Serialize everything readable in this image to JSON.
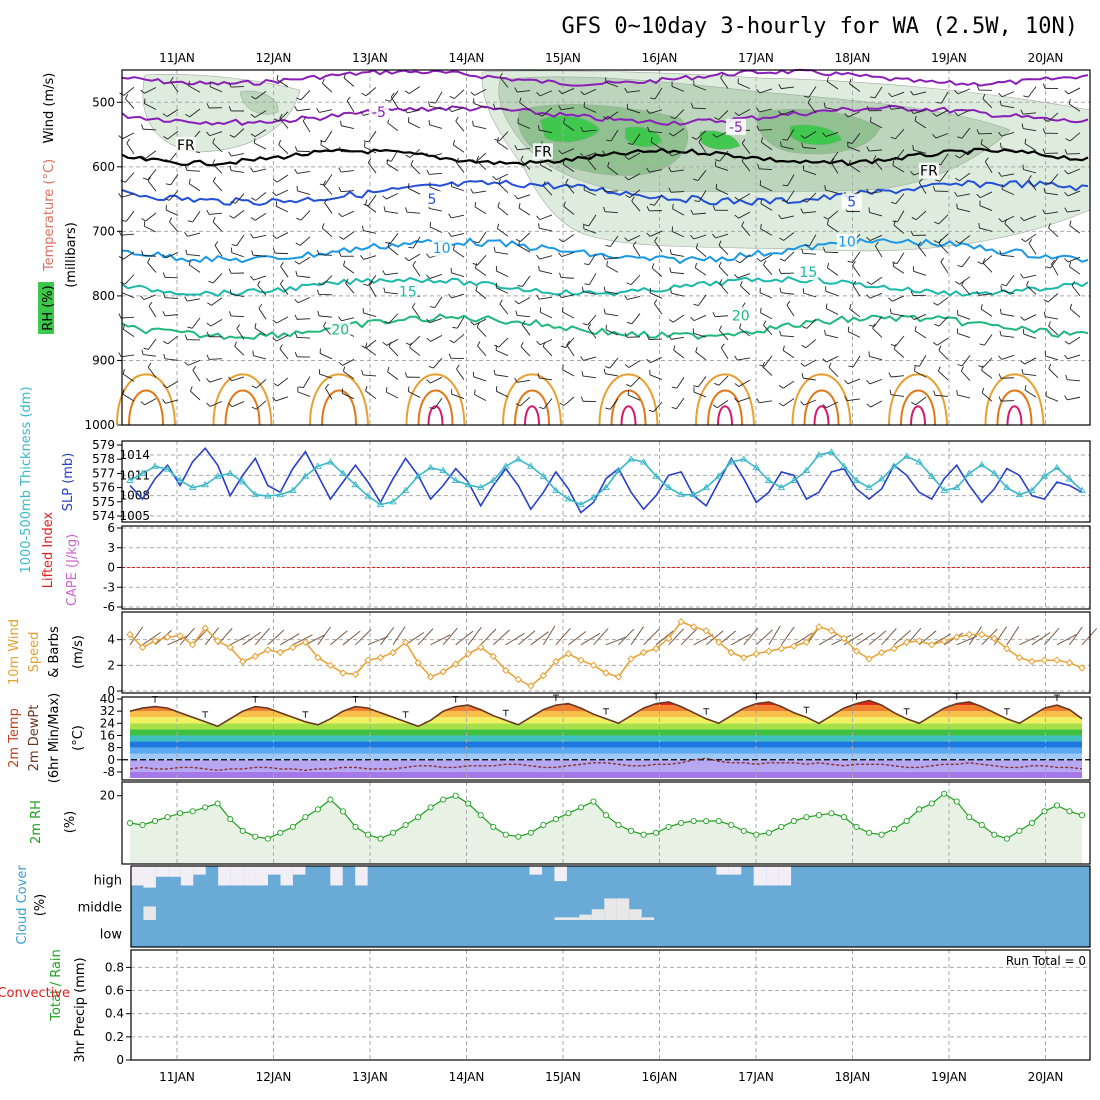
{
  "title": "GFS 0~10day 3-hourly for WA (2.5W, 10N)",
  "run_total_label": "Run Total = 0",
  "colors": {
    "frame": "#000000",
    "grid": "#aaaaaa",
    "temp_purple": "#8a1fb8",
    "temp_blue": "#2450d8",
    "temp_lightblue": "#1a98e6",
    "temp_teal": "#1ab8a8",
    "temp_green": "#1fb87a",
    "temp_orange": "#e8a030",
    "temp_darkorange": "#e07818",
    "temp_magenta": "#d81870",
    "rh_light": "#dcebdc",
    "rh_mid": "#bcd4bc",
    "rh_dark": "#8fbf8f",
    "rh_green": "#3cc84a",
    "slp": "#2840c8",
    "thickness": "#3ab8c8",
    "lifted_index": "#e02020",
    "cape": "#c868c8",
    "wind": "#e8a030",
    "rh2m": "#20a020",
    "rh2m_fill": "#e8f2e4",
    "cloud_blue": "#6aaad6",
    "cloud_white": "#f2eef6",
    "cloud_grey": "#e8e8e8",
    "precip_total": "#20a020",
    "precip_conv": "#e02020"
  },
  "chart_data": [
    {
      "type": "heatmap",
      "panel": "upper-air",
      "x_ticks": [
        "11JAN",
        "12JAN",
        "13JAN",
        "14JAN",
        "15JAN",
        "16JAN",
        "17JAN",
        "18JAN",
        "19JAN",
        "20JAN"
      ],
      "ylabel_wind": "Wind (m/s)",
      "ylabel_temp": "Temperature (°C)",
      "ylabel_rh": "RH (%)",
      "ylabel_units": "(millibars)",
      "y_ticks": [
        500,
        600,
        700,
        800,
        900,
        1000
      ],
      "ylim": [
        450,
        1000
      ],
      "isotherm_labels": [
        {
          "text": "-5",
          "x": 2.1,
          "p": 515,
          "color": "temp_purple"
        },
        {
          "text": "-5",
          "x": 5.8,
          "p": 538,
          "color": "temp_purple"
        },
        {
          "text": "FR",
          "x": 0.1,
          "p": 566,
          "color": "frame"
        },
        {
          "text": "FR",
          "x": 3.8,
          "p": 576,
          "color": "frame"
        },
        {
          "text": "FR",
          "x": 7.8,
          "p": 606,
          "color": "frame"
        },
        {
          "text": "5",
          "x": 2.65,
          "p": 650,
          "color": "temp_blue"
        },
        {
          "text": "5",
          "x": 7.0,
          "p": 654,
          "color": "temp_blue"
        },
        {
          "text": "10",
          "x": 2.75,
          "p": 726,
          "color": "temp_lightblue"
        },
        {
          "text": "10",
          "x": 6.95,
          "p": 716,
          "color": "temp_lightblue"
        },
        {
          "text": "15",
          "x": 6.55,
          "p": 763,
          "color": "temp_teal"
        },
        {
          "text": "15",
          "x": 2.4,
          "p": 793,
          "color": "temp_teal"
        },
        {
          "text": "20",
          "x": 1.7,
          "p": 852,
          "color": "temp_green"
        },
        {
          "text": "20",
          "x": 5.85,
          "p": 830,
          "color": "temp_green"
        }
      ]
    },
    {
      "type": "line",
      "panel": "slp-thickness",
      "ylabel_left": "1000-500mb Thickness (dm)",
      "ylabel_right": "SLP (mb)",
      "thickness_ticks": [
        574,
        575,
        576,
        577,
        578,
        579
      ],
      "slp_ticks": [
        1005,
        1008,
        1011,
        1014
      ],
      "series": [
        {
          "name": "SLP",
          "axis": "slp",
          "color": "slp",
          "values": [
            1009.5,
            1007.5,
            1010.5,
            1012.5,
            1009.5,
            1013.0,
            1015.0,
            1012.5,
            1008.0,
            1011.0,
            1013.5,
            1009.5,
            1008.5,
            1012.0,
            1014.5,
            1011.0,
            1007.5,
            1010.0,
            1012.5,
            1010.0,
            1007.0,
            1010.5,
            1013.5,
            1011.0,
            1007.5,
            1009.5,
            1012.0,
            1010.0,
            1006.5,
            1009.5,
            1012.0,
            1009.5,
            1006.0,
            1008.5,
            1011.5,
            1009.0,
            1005.5,
            1007.0,
            1010.5,
            1012.0,
            1008.5,
            1006.0,
            1008.0,
            1011.0,
            1011.5,
            1008.0,
            1006.5,
            1010.0,
            1013.5,
            1010.5,
            1007.0,
            1008.5,
            1011.5,
            1011.0,
            1007.5,
            1008.5,
            1011.5,
            1012.0,
            1009.0,
            1007.5,
            1009.0,
            1012.5,
            1011.0,
            1008.5,
            1007.5,
            1010.5,
            1012.5,
            1009.5,
            1007.0,
            1009.0,
            1012.0,
            1011.0,
            1008.0,
            1007.5,
            1010.0,
            1009.5,
            1008.5
          ]
        },
        {
          "name": "Thickness",
          "axis": "thickness",
          "color": "thickness",
          "values": [
            576.5,
            577.0,
            577.5,
            577.3,
            576.5,
            576.0,
            576.2,
            576.8,
            577.0,
            576.4,
            575.5,
            575.4,
            575.5,
            575.8,
            576.8,
            577.5,
            577.8,
            577.0,
            576.2,
            575.4,
            574.8,
            575.0,
            575.8,
            576.8,
            577.4,
            577.2,
            576.5,
            576.2,
            576.0,
            576.5,
            577.5,
            578.0,
            577.5,
            576.8,
            575.8,
            575.2,
            574.8,
            575.3,
            576.0,
            577.2,
            578.0,
            577.8,
            576.8,
            576.0,
            575.5,
            575.5,
            576.0,
            576.8,
            577.8,
            578.0,
            577.4,
            576.5,
            576.0,
            576.5,
            577.2,
            578.3,
            578.5,
            577.5,
            576.5,
            576.0,
            576.6,
            577.5,
            578.2,
            577.8,
            576.8,
            575.8,
            576.0,
            577.0,
            577.6,
            577.0,
            576.0,
            575.5,
            575.8,
            576.8,
            577.4,
            576.6,
            575.8
          ]
        }
      ]
    },
    {
      "type": "line",
      "panel": "lifted-cape",
      "ylabel_left": "Lifted Index",
      "ylabel_right": "CAPE (J/kg)",
      "y_ticks": [
        "6",
        "3",
        "0",
        "-3",
        "-6"
      ],
      "ylim": [
        6,
        -6
      ],
      "series": [
        {
          "name": "Lifted Index",
          "color": "lifted_index",
          "values": [
            0
          ]
        }
      ]
    },
    {
      "type": "line",
      "panel": "wind10m",
      "ylabel": "10m Wind Speed & Barbs (m/s)",
      "y_ticks": [
        0,
        2,
        4
      ],
      "ylim": [
        0,
        6
      ],
      "series": [
        {
          "name": "Speed",
          "color": "wind",
          "values": [
            4.4,
            3.4,
            3.9,
            4.2,
            4.3,
            3.6,
            4.9,
            3.9,
            3.4,
            2.3,
            2.7,
            3.2,
            3.0,
            3.4,
            3.8,
            2.6,
            2.0,
            1.4,
            1.3,
            2.4,
            2.6,
            3.0,
            3.8,
            2.2,
            1.1,
            1.5,
            2.1,
            2.9,
            3.4,
            2.7,
            1.6,
            0.9,
            0.4,
            1.2,
            2.3,
            2.9,
            2.4,
            2.0,
            1.4,
            1.1,
            2.5,
            3.0,
            3.3,
            4.1,
            5.4,
            5.0,
            4.7,
            3.8,
            3.0,
            2.6,
            2.9,
            3.1,
            3.3,
            3.5,
            3.8,
            5.0,
            4.7,
            4.1,
            3.1,
            2.5,
            3.0,
            3.3,
            3.8,
            3.9,
            3.6,
            3.9,
            4.2,
            4.4,
            4.4,
            4.1,
            3.3,
            2.6,
            2.3,
            2.4,
            2.4,
            2.2,
            1.8
          ]
        }
      ]
    },
    {
      "type": "area",
      "panel": "temp2m",
      "ylabel": "2m Temp 2m DewPt (6hr Min/Max) (°C)",
      "y_ticks": [
        -8,
        0,
        8,
        16,
        24,
        32,
        40
      ],
      "ylim": [
        -12,
        40
      ],
      "series": [
        {
          "name": "2m Temp",
          "color": "temp_darkorange",
          "values": [
            32,
            34,
            35,
            34,
            31,
            28,
            25,
            22,
            27,
            32,
            35,
            34,
            31,
            28,
            25,
            23,
            27,
            32,
            35,
            34,
            31,
            28,
            25,
            22,
            26,
            32,
            35,
            36,
            33,
            29,
            26,
            23,
            28,
            33,
            36,
            37,
            34,
            30,
            27,
            24,
            29,
            34,
            37,
            38,
            35,
            31,
            27,
            24,
            29,
            34,
            37,
            38,
            35,
            31,
            28,
            24,
            29,
            34,
            37,
            39,
            36,
            31,
            27,
            24,
            29,
            34,
            37,
            38,
            35,
            31,
            27,
            24,
            29,
            34,
            36,
            33,
            27
          ]
        },
        {
          "name": "2m DewPt",
          "color": "#8a3030",
          "values": [
            -6,
            -5,
            -6,
            -6,
            -5,
            -5,
            -6,
            -7,
            -6,
            -6,
            -5,
            -5,
            -6,
            -6,
            -7,
            -6,
            -6,
            -5,
            -5,
            -6,
            -6,
            -6,
            -5,
            -4,
            -4,
            -5,
            -5,
            -4,
            -4,
            -4,
            -3,
            -3,
            -4,
            -5,
            -5,
            -4,
            -3,
            -2,
            -2,
            -3,
            -4,
            -4,
            -3,
            -3,
            -2,
            0,
            1,
            -1,
            -2,
            -2,
            -3,
            -2,
            -2,
            -2,
            -3,
            -2,
            -3,
            -4,
            -3,
            -3,
            -3,
            -4,
            -5,
            -5,
            -4,
            -3,
            -3,
            -2,
            -3,
            -4,
            -5,
            -5,
            -4,
            -4,
            -5,
            -5,
            -6
          ]
        }
      ]
    },
    {
      "type": "line",
      "panel": "rh2m",
      "ylabel": "2m RH (%)",
      "y_ticks": [
        20
      ],
      "ylim": [
        3,
        23
      ],
      "series": [
        {
          "name": "2m RH",
          "color": "rh2m",
          "values": [
            13,
            12.5,
            13.5,
            14.5,
            15.5,
            16,
            17,
            18,
            14,
            11,
            9.5,
            9,
            10.5,
            12,
            14.5,
            16.5,
            19,
            16,
            12,
            10,
            9,
            10.5,
            12.5,
            14.5,
            17,
            19,
            20,
            18,
            15,
            12,
            10,
            9.5,
            10.5,
            12.5,
            14,
            15.5,
            17,
            18.5,
            15,
            12.5,
            11,
            10,
            10.5,
            12,
            13,
            13.5,
            13.5,
            13.5,
            12.5,
            11,
            10,
            10.5,
            12,
            13.5,
            14.5,
            15,
            15.5,
            14.5,
            12,
            10.5,
            10,
            11.5,
            13.5,
            16.5,
            18,
            20.5,
            18.5,
            14.5,
            12.5,
            10,
            9,
            11,
            13,
            16,
            17.5,
            16,
            15
          ]
        }
      ]
    },
    {
      "type": "heatmap",
      "panel": "cloud",
      "ylabel": "Cloud Cover (%)",
      "row_labels": [
        "high",
        "middle",
        "low"
      ],
      "high_clear_fraction": [
        0.45,
        0.5,
        0.25,
        0.25,
        0.45,
        0.2,
        0,
        0.45,
        0.45,
        0.45,
        0.45,
        0.2,
        0.45,
        0.2,
        0,
        0,
        0.45,
        0,
        0.45,
        0,
        0,
        0,
        0,
        0,
        0,
        0,
        0,
        0,
        0,
        0,
        0,
        0,
        0.2,
        0,
        0.35,
        0,
        0,
        0,
        0,
        0,
        0,
        0,
        0,
        0,
        0,
        0,
        0,
        0.2,
        0.2,
        0,
        0.45,
        0.45,
        0.45,
        0,
        0,
        0,
        0,
        0,
        0,
        0,
        0,
        0,
        0,
        0,
        0,
        0,
        0,
        0,
        0,
        0,
        0,
        0,
        0,
        0,
        0,
        0,
        0
      ],
      "middle_clear_fraction": [
        0,
        0.5,
        0,
        0,
        0,
        0,
        0,
        0,
        0,
        0,
        0,
        0,
        0,
        0,
        0,
        0,
        0,
        0,
        0,
        0,
        0,
        0,
        0,
        0,
        0,
        0,
        0,
        0,
        0,
        0,
        0,
        0,
        0,
        0,
        0.1,
        0.1,
        0.2,
        0.4,
        0.8,
        0.8,
        0.4,
        0.1,
        0,
        0,
        0,
        0,
        0,
        0,
        0,
        0,
        0,
        0,
        0,
        0,
        0,
        0,
        0,
        0,
        0,
        0,
        0,
        0,
        0,
        0,
        0,
        0,
        0,
        0,
        0,
        0,
        0,
        0,
        0,
        0,
        0,
        0,
        0
      ]
    },
    {
      "type": "bar",
      "panel": "precip",
      "ylabel_total": "Total / Rain",
      "ylabel_conv": "Convective",
      "ylabel_units": "3hr Precip (mm)",
      "y_ticks": [
        "0",
        "0.2",
        "0.4",
        "0.6",
        "0.8"
      ],
      "ylim": [
        0,
        0.95
      ],
      "values": []
    }
  ]
}
